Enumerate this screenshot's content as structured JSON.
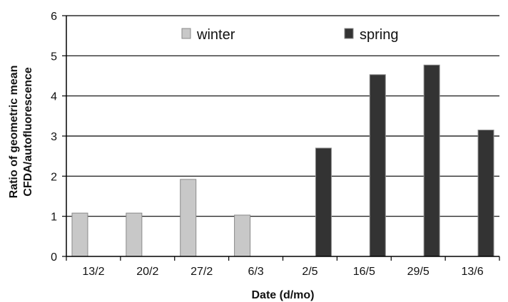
{
  "chart_data": {
    "type": "bar",
    "title": "",
    "xlabel": "Date (d/mo)",
    "ylabel_lines": [
      "Ratio of geometric mean",
      "CFDA/autofluorescence"
    ],
    "ylim": [
      0,
      6
    ],
    "yticks": [
      0,
      1,
      2,
      3,
      4,
      5,
      6
    ],
    "grid": true,
    "legend_position": "top",
    "categories": [
      "13/2",
      "20/2",
      "27/2",
      "6/3",
      "2/5",
      "16/5",
      "29/5",
      "13/6"
    ],
    "series": [
      {
        "name": "winter",
        "color": "#c8c8c8",
        "values": [
          1.08,
          1.08,
          1.92,
          1.03,
          null,
          null,
          null,
          null
        ]
      },
      {
        "name": "spring",
        "color": "#333333",
        "values": [
          null,
          null,
          null,
          null,
          2.7,
          4.53,
          4.77,
          3.15
        ]
      }
    ]
  }
}
